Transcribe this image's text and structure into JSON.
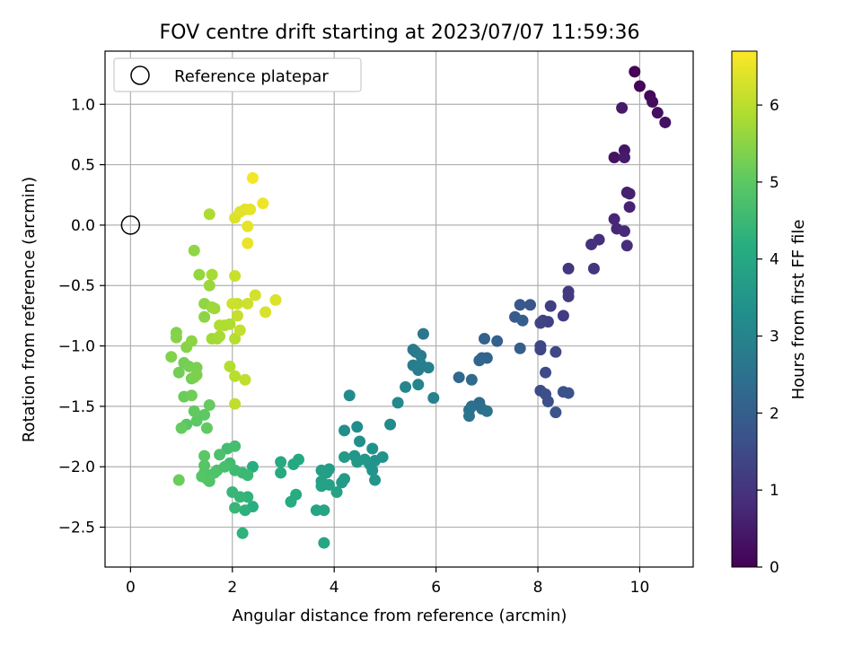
{
  "chart_data": {
    "type": "scatter",
    "title": "FOV centre drift starting at 2023/07/07 11:59:36",
    "xlabel": "Angular distance from reference (arcmin)",
    "ylabel": "Rotation from reference (arcmin)",
    "xlim": [
      -0.5,
      11.05
    ],
    "ylim": [
      -2.83,
      1.44
    ],
    "x_ticks": [
      0,
      2,
      4,
      6,
      8,
      10
    ],
    "y_ticks": [
      -2.5,
      -2.0,
      -1.5,
      -1.0,
      -0.5,
      0.0,
      0.5,
      1.0
    ],
    "x_tick_labels": [
      "0",
      "2",
      "4",
      "6",
      "8",
      "10"
    ],
    "y_tick_labels": [
      "−2.5",
      "−2.0",
      "−1.5",
      "−1.0",
      "−0.5",
      "0.0",
      "0.5",
      "1.0"
    ],
    "grid": true,
    "legend": {
      "position": "top-left",
      "entries": [
        "Reference platepar"
      ]
    },
    "reference_point": {
      "x": 0,
      "y": 0,
      "label": "Reference platepar"
    },
    "colorbar": {
      "label": "Hours from first FF file",
      "range": [
        0,
        6.7
      ],
      "ticks": [
        0,
        1,
        2,
        3,
        4,
        5,
        6
      ],
      "tick_labels": [
        "0",
        "1",
        "2",
        "3",
        "4",
        "5",
        "6"
      ],
      "colormap": "viridis"
    },
    "point_fields": [
      "x",
      "y",
      "hours"
    ],
    "points": [
      [
        9.9,
        1.27,
        0.05
      ],
      [
        10.0,
        1.15,
        0.1
      ],
      [
        10.2,
        1.07,
        0.15
      ],
      [
        10.25,
        1.02,
        0.2
      ],
      [
        10.35,
        0.93,
        0.25
      ],
      [
        10.5,
        0.85,
        0.3
      ],
      [
        9.5,
        0.56,
        0.35
      ],
      [
        9.7,
        0.62,
        0.4
      ],
      [
        9.65,
        0.97,
        0.45
      ],
      [
        9.7,
        0.56,
        0.5
      ],
      [
        9.75,
        0.27,
        0.55
      ],
      [
        9.8,
        0.26,
        0.6
      ],
      [
        9.8,
        0.15,
        0.65
      ],
      [
        9.5,
        0.05,
        0.7
      ],
      [
        9.55,
        -0.03,
        0.75
      ],
      [
        9.7,
        -0.05,
        0.8
      ],
      [
        9.75,
        -0.17,
        0.85
      ],
      [
        9.2,
        -0.12,
        0.9
      ],
      [
        9.05,
        -0.16,
        0.95
      ],
      [
        9.1,
        -0.36,
        1.0
      ],
      [
        8.6,
        -0.36,
        1.05
      ],
      [
        8.6,
        -0.55,
        1.1
      ],
      [
        8.6,
        -0.59,
        1.15
      ],
      [
        8.5,
        -0.75,
        1.2
      ],
      [
        8.25,
        -0.67,
        1.25
      ],
      [
        8.2,
        -0.8,
        1.3
      ],
      [
        8.1,
        -0.79,
        1.3
      ],
      [
        8.05,
        -0.81,
        1.35
      ],
      [
        8.05,
        -1.0,
        1.4
      ],
      [
        8.05,
        -1.03,
        1.4
      ],
      [
        8.35,
        -1.05,
        1.45
      ],
      [
        8.15,
        -1.22,
        1.5
      ],
      [
        8.05,
        -1.37,
        1.55
      ],
      [
        8.15,
        -1.4,
        1.6
      ],
      [
        8.2,
        -1.46,
        1.6
      ],
      [
        8.5,
        -1.38,
        1.65
      ],
      [
        8.6,
        -1.39,
        1.7
      ],
      [
        8.35,
        -1.55,
        1.75
      ],
      [
        7.85,
        -0.66,
        1.8
      ],
      [
        7.65,
        -0.66,
        1.85
      ],
      [
        7.55,
        -0.76,
        1.9
      ],
      [
        7.7,
        -0.79,
        1.95
      ],
      [
        7.65,
        -1.02,
        2.0
      ],
      [
        7.2,
        -0.96,
        2.05
      ],
      [
        6.95,
        -0.94,
        2.1
      ],
      [
        6.9,
        -1.1,
        2.15
      ],
      [
        7.0,
        -1.1,
        2.15
      ],
      [
        6.85,
        -1.12,
        2.2
      ],
      [
        6.45,
        -1.26,
        2.25
      ],
      [
        6.7,
        -1.28,
        2.3
      ],
      [
        6.85,
        -1.47,
        2.35
      ],
      [
        6.7,
        -1.5,
        2.4
      ],
      [
        6.9,
        -1.52,
        2.45
      ],
      [
        7.0,
        -1.54,
        2.5
      ],
      [
        6.65,
        -1.53,
        2.5
      ],
      [
        6.65,
        -1.58,
        2.55
      ],
      [
        5.75,
        -0.9,
        2.65
      ],
      [
        5.55,
        -1.03,
        2.7
      ],
      [
        5.6,
        -1.05,
        2.7
      ],
      [
        5.7,
        -1.08,
        2.75
      ],
      [
        5.55,
        -1.16,
        2.8
      ],
      [
        5.7,
        -1.15,
        2.85
      ],
      [
        5.65,
        -1.2,
        2.85
      ],
      [
        5.85,
        -1.18,
        2.9
      ],
      [
        5.95,
        -1.43,
        2.95
      ],
      [
        5.65,
        -1.32,
        3.0
      ],
      [
        5.4,
        -1.34,
        3.05
      ],
      [
        5.25,
        -1.47,
        3.1
      ],
      [
        5.1,
        -1.65,
        3.15
      ],
      [
        4.3,
        -1.41,
        3.2
      ],
      [
        4.45,
        -1.67,
        3.25
      ],
      [
        4.2,
        -1.7,
        3.3
      ],
      [
        4.5,
        -1.79,
        3.3
      ],
      [
        4.75,
        -1.85,
        3.35
      ],
      [
        4.95,
        -1.92,
        3.4
      ],
      [
        4.8,
        -1.95,
        3.4
      ],
      [
        4.7,
        -1.98,
        3.45
      ],
      [
        4.75,
        -2.03,
        3.45
      ],
      [
        4.8,
        -2.11,
        3.5
      ],
      [
        4.4,
        -1.91,
        3.5
      ],
      [
        4.45,
        -1.96,
        3.55
      ],
      [
        4.6,
        -1.94,
        3.55
      ],
      [
        4.2,
        -1.92,
        3.6
      ],
      [
        4.2,
        -2.1,
        3.65
      ],
      [
        4.15,
        -2.13,
        3.65
      ],
      [
        3.9,
        -2.02,
        3.7
      ],
      [
        3.85,
        -2.05,
        3.7
      ],
      [
        3.75,
        -2.03,
        3.75
      ],
      [
        3.75,
        -2.12,
        3.75
      ],
      [
        3.9,
        -2.15,
        3.8
      ],
      [
        3.75,
        -2.16,
        3.8
      ],
      [
        4.05,
        -2.21,
        3.85
      ],
      [
        3.8,
        -2.36,
        3.9
      ],
      [
        3.65,
        -2.36,
        3.9
      ],
      [
        3.8,
        -2.63,
        3.95
      ],
      [
        3.3,
        -1.94,
        4.0
      ],
      [
        3.2,
        -1.98,
        4.0
      ],
      [
        2.95,
        -1.96,
        4.05
      ],
      [
        2.95,
        -2.05,
        4.05
      ],
      [
        3.25,
        -2.23,
        4.1
      ],
      [
        3.15,
        -2.29,
        4.1
      ],
      [
        2.4,
        -2.0,
        4.15
      ],
      [
        2.4,
        -2.33,
        4.2
      ],
      [
        2.25,
        -2.36,
        4.25
      ],
      [
        2.2,
        -2.55,
        4.3
      ],
      [
        2.3,
        -2.25,
        4.35
      ],
      [
        2.15,
        -2.25,
        4.4
      ],
      [
        2.0,
        -2.21,
        4.45
      ],
      [
        2.05,
        -2.34,
        4.45
      ],
      [
        2.3,
        -2.07,
        4.5
      ],
      [
        2.2,
        -2.05,
        4.5
      ],
      [
        2.05,
        -2.03,
        4.55
      ],
      [
        1.95,
        -1.97,
        4.6
      ],
      [
        1.9,
        -1.85,
        4.6
      ],
      [
        2.05,
        -1.83,
        4.65
      ],
      [
        1.85,
        -2.0,
        4.7
      ],
      [
        1.7,
        -2.03,
        4.7
      ],
      [
        1.75,
        -1.9,
        4.75
      ],
      [
        1.65,
        -2.05,
        4.8
      ],
      [
        1.45,
        -2.05,
        4.8
      ],
      [
        1.5,
        -2.1,
        4.85
      ],
      [
        1.55,
        -2.12,
        4.85
      ],
      [
        1.4,
        -2.08,
        4.9
      ],
      [
        1.45,
        -1.99,
        4.9
      ],
      [
        1.45,
        -1.91,
        4.95
      ],
      [
        1.1,
        -1.65,
        4.95
      ],
      [
        1.3,
        -1.62,
        5.0
      ],
      [
        1.45,
        -1.57,
        5.0
      ],
      [
        1.25,
        -1.54,
        5.05
      ],
      [
        1.5,
        -1.68,
        5.05
      ],
      [
        1.55,
        -1.49,
        5.1
      ],
      [
        1.0,
        -1.68,
        5.1
      ],
      [
        1.05,
        -1.42,
        5.15
      ],
      [
        0.95,
        -2.11,
        5.15
      ],
      [
        1.2,
        -1.41,
        5.2
      ],
      [
        1.2,
        -1.27,
        5.2
      ],
      [
        0.95,
        -1.22,
        5.25
      ],
      [
        1.05,
        -1.14,
        5.25
      ],
      [
        1.15,
        -1.17,
        5.3
      ],
      [
        1.3,
        -1.18,
        5.3
      ],
      [
        1.3,
        -1.24,
        5.35
      ],
      [
        1.25,
        -1.26,
        5.35
      ],
      [
        0.8,
        -1.09,
        5.4
      ],
      [
        0.9,
        -0.89,
        5.4
      ],
      [
        0.9,
        -0.93,
        5.45
      ],
      [
        1.1,
        -1.01,
        5.45
      ],
      [
        1.2,
        -0.96,
        5.5
      ],
      [
        1.45,
        -0.76,
        5.5
      ],
      [
        1.45,
        -0.65,
        5.55
      ],
      [
        1.25,
        -0.21,
        5.55
      ],
      [
        1.35,
        -0.41,
        5.6
      ],
      [
        1.55,
        -0.5,
        5.65
      ],
      [
        1.6,
        -0.68,
        5.65
      ],
      [
        1.65,
        -0.69,
        5.7
      ],
      [
        1.6,
        -0.94,
        5.75
      ],
      [
        1.7,
        -0.94,
        5.75
      ],
      [
        1.75,
        -0.92,
        5.8
      ],
      [
        1.6,
        -0.41,
        5.8
      ],
      [
        1.55,
        0.09,
        5.85
      ],
      [
        1.85,
        -0.83,
        5.85
      ],
      [
        1.95,
        -0.82,
        5.9
      ],
      [
        1.75,
        -0.83,
        5.9
      ],
      [
        2.05,
        -0.94,
        5.95
      ],
      [
        1.95,
        -1.17,
        5.95
      ],
      [
        2.05,
        -1.25,
        6.0
      ],
      [
        2.25,
        -1.28,
        6.05
      ],
      [
        2.05,
        -1.48,
        6.05
      ],
      [
        2.1,
        -0.75,
        6.1
      ],
      [
        2.15,
        -0.87,
        6.1
      ],
      [
        2.1,
        -0.65,
        6.15
      ],
      [
        2.05,
        -0.42,
        6.15
      ],
      [
        2.0,
        -0.65,
        6.2
      ],
      [
        2.3,
        -0.65,
        6.2
      ],
      [
        2.45,
        -0.58,
        6.25
      ],
      [
        2.65,
        -0.72,
        6.3
      ],
      [
        2.85,
        -0.62,
        6.35
      ],
      [
        2.05,
        0.06,
        6.35
      ],
      [
        2.15,
        0.11,
        6.4
      ],
      [
        2.25,
        0.13,
        6.4
      ],
      [
        2.35,
        0.13,
        6.45
      ],
      [
        2.3,
        -0.01,
        6.45
      ],
      [
        2.3,
        -0.15,
        6.5
      ],
      [
        2.6,
        0.18,
        6.55
      ],
      [
        2.4,
        0.39,
        6.6
      ]
    ]
  }
}
